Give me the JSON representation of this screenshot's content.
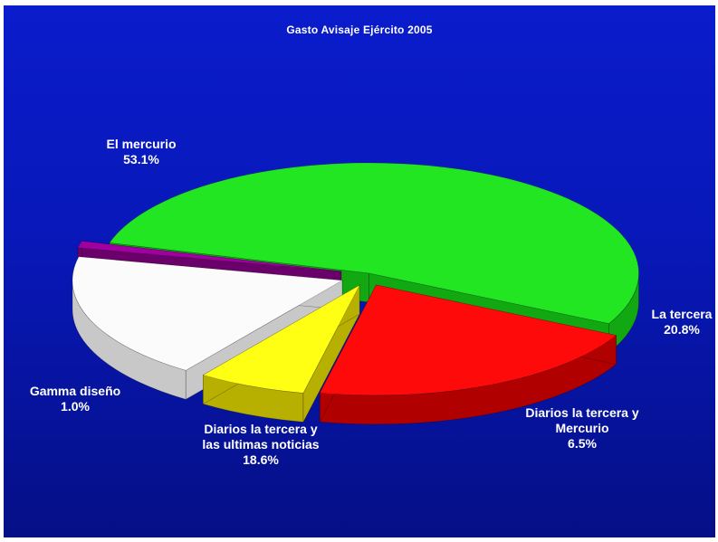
{
  "chart_data": {
    "type": "pie",
    "title": "Gasto Avisaje Ejército 2005",
    "style": "3d-exploded",
    "slices": [
      {
        "label_lines": [
          "El mercurio"
        ],
        "percent_text": "53.1%",
        "value": 53.1,
        "color": "#22e622",
        "side_color": "#12a812"
      },
      {
        "label_lines": [
          "La tercera"
        ],
        "percent_text": "20.8%",
        "value": 20.8,
        "color": "#ff0a0a",
        "side_color": "#b00000"
      },
      {
        "label_lines": [
          "Diarios la tercera y",
          "Mercurio"
        ],
        "percent_text": "6.5%",
        "value": 6.5,
        "color": "#ffff14",
        "side_color": "#b8b000"
      },
      {
        "label_lines": [
          "Diarios la tercera y",
          "las ultimas noticias"
        ],
        "percent_text": "18.6%",
        "value": 18.6,
        "color": "#fbfbfb",
        "side_color": "#c8c8c8"
      },
      {
        "label_lines": [
          "Gamma diseño"
        ],
        "percent_text": "1.0%",
        "value": 1.0,
        "color": "#a000a0",
        "side_color": "#6a006a"
      }
    ]
  }
}
